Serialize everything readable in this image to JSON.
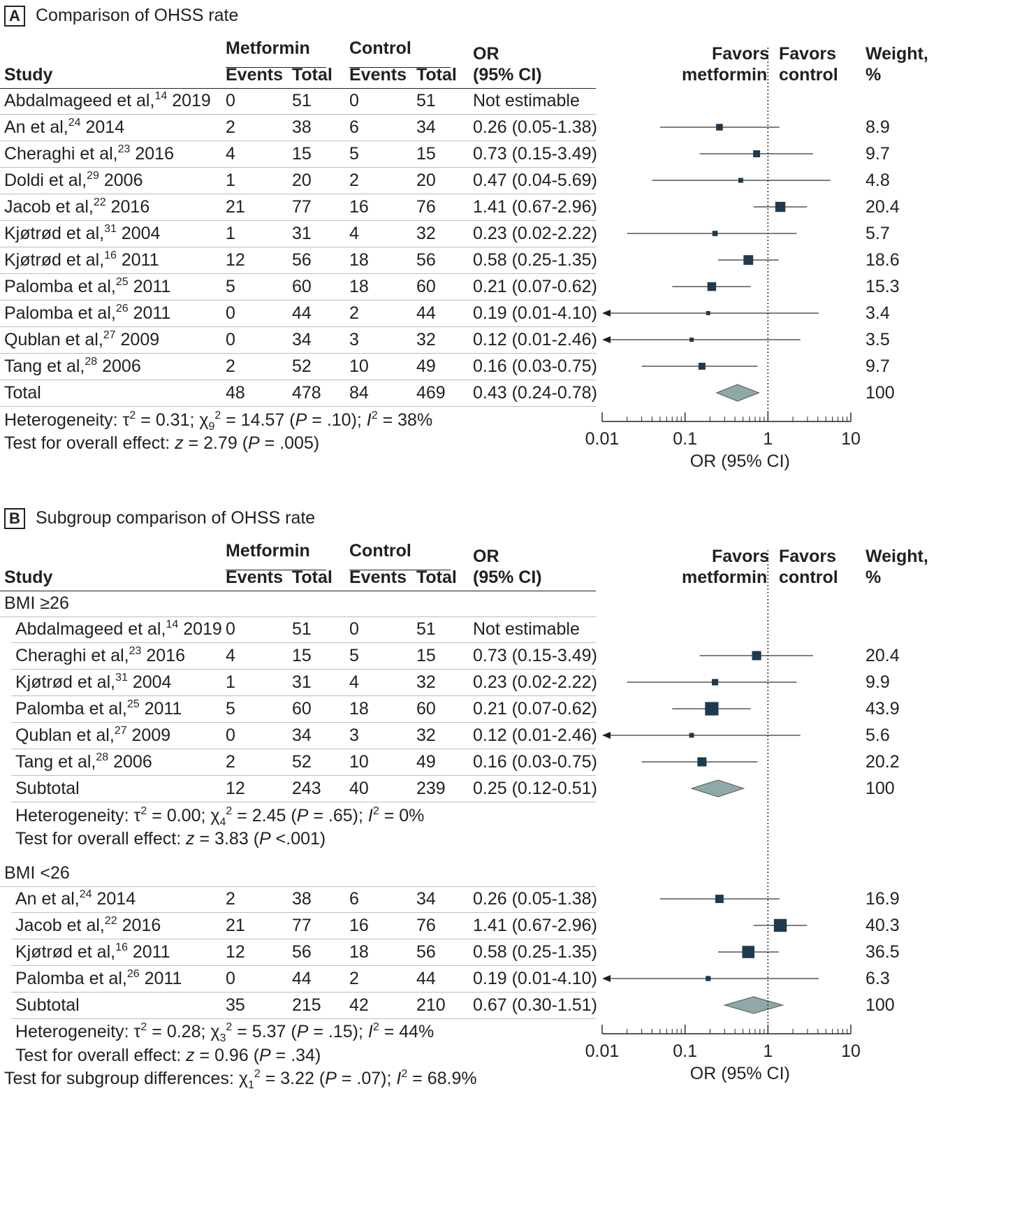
{
  "colors": {
    "marker": "#1f3a4d",
    "diamond": "#8fa9a9",
    "text": "#231f20",
    "rule": "#bdbdbd"
  },
  "panelA": {
    "letter": "A",
    "title": "Comparison of OHSS rate",
    "heterogeneity": "Heterogeneity: τ<sup>2</sup> = 0.31; χ<sub>9</sub><sup>2</sup> = 14.57 (<i>P</i> = .10); <i>I</i><sup>2</sup> = 38%",
    "overall": "Test for overall effect: <i>z</i> = 2.79 (<i>P</i> = .005)"
  },
  "panelB": {
    "letter": "B",
    "title": "Subgroup comparison of OHSS rate",
    "group1_label": "BMI ≥26",
    "group1_heterogeneity": "Heterogeneity: τ<sup>2</sup> = 0.00; χ<sub>4</sub><sup>2</sup> = 2.45 (<i>P</i> = .65); <i>I</i><sup>2</sup> = 0%",
    "group1_overall": "Test for overall effect: <i>z</i> = 3.83 (<i>P</i> &lt;.001)",
    "group2_label": "BMI <26",
    "group2_heterogeneity": "Heterogeneity: τ<sup>2</sup> = 0.28; χ<sub>3</sub><sup>2</sup> = 5.37 (<i>P</i> = .15); <i>I</i><sup>2</sup> = 44%",
    "group2_overall": "Test for overall effect: <i>z</i> = 0.96 (<i>P</i> = .34)",
    "subgroup_diff": "Test for subgroup differences: χ<sub>1</sub><sup>2</sup> = 3.22 (<i>P</i> = .07); <i>I</i><sup>2</sup> = 68.9%"
  },
  "headers": {
    "metformin": "Metformin",
    "control": "Control",
    "study": "Study",
    "events": "Events",
    "total": "Total",
    "or_line1": "OR",
    "or_line2": "(95% CI)",
    "favors1_line1": "Favors",
    "favors1_line2": "metformin",
    "favors2_line1": "Favors",
    "favors2_line2": "control",
    "weight_line1": "Weight,",
    "weight_line2": "%"
  },
  "axis": {
    "ticks": [
      0.01,
      0.1,
      1,
      10
    ],
    "tick_labels": [
      "0.01",
      "0.1",
      "1",
      "10"
    ],
    "label": "OR (95% CI)",
    "scale": "log",
    "range": [
      0.01,
      10
    ],
    "reference": 1
  },
  "chart_data": [
    {
      "type": "forest",
      "title": "Comparison of OHSS rate",
      "xlabel": "OR (95% CI)",
      "xscale": "log",
      "xlim": [
        0.01,
        10
      ],
      "studies": [
        {
          "study": "Abdalmageed et al,",
          "ref": "14",
          "year": "2019",
          "met_events": "0",
          "met_total": "51",
          "ctl_events": "0",
          "ctl_total": "51",
          "or_text": "Not estimable",
          "or": null,
          "lo": null,
          "hi": null,
          "weight": ""
        },
        {
          "study": "An et al,",
          "ref": "24",
          "year": "2014",
          "met_events": "2",
          "met_total": "38",
          "ctl_events": "6",
          "ctl_total": "34",
          "or_text": "0.26 (0.05-1.38)",
          "or": 0.26,
          "lo": 0.05,
          "hi": 1.38,
          "weight": "8.9"
        },
        {
          "study": "Cheraghi et al,",
          "ref": "23",
          "year": "2016",
          "met_events": "4",
          "met_total": "15",
          "ctl_events": "5",
          "ctl_total": "15",
          "or_text": "0.73 (0.15-3.49)",
          "or": 0.73,
          "lo": 0.15,
          "hi": 3.49,
          "weight": "9.7"
        },
        {
          "study": "Doldi et al,",
          "ref": "29",
          "year": "2006",
          "met_events": "1",
          "met_total": "20",
          "ctl_events": "2",
          "ctl_total": "20",
          "or_text": "0.47 (0.04-5.69)",
          "or": 0.47,
          "lo": 0.04,
          "hi": 5.69,
          "weight": "4.8"
        },
        {
          "study": "Jacob et al,",
          "ref": "22",
          "year": "2016",
          "met_events": "21",
          "met_total": "77",
          "ctl_events": "16",
          "ctl_total": "76",
          "or_text": "1.41 (0.67-2.96)",
          "or": 1.41,
          "lo": 0.67,
          "hi": 2.96,
          "weight": "20.4"
        },
        {
          "study": "Kjøtrød et al,",
          "ref": "31",
          "year": "2004",
          "met_events": "1",
          "met_total": "31",
          "ctl_events": "4",
          "ctl_total": "32",
          "or_text": "0.23 (0.02-2.22)",
          "or": 0.23,
          "lo": 0.02,
          "hi": 2.22,
          "weight": "5.7"
        },
        {
          "study": "Kjøtrød et al,",
          "ref": "16",
          "year": "2011",
          "met_events": "12",
          "met_total": "56",
          "ctl_events": "18",
          "ctl_total": "56",
          "or_text": "0.58 (0.25-1.35)",
          "or": 0.58,
          "lo": 0.25,
          "hi": 1.35,
          "weight": "18.6"
        },
        {
          "study": "Palomba et al,",
          "ref": "25",
          "year": "2011",
          "met_events": "5",
          "met_total": "60",
          "ctl_events": "18",
          "ctl_total": "60",
          "or_text": "0.21 (0.07-0.62)",
          "or": 0.21,
          "lo": 0.07,
          "hi": 0.62,
          "weight": "15.3"
        },
        {
          "study": "Palomba et al,",
          "ref": "26",
          "year": "2011",
          "met_events": "0",
          "met_total": "44",
          "ctl_events": "2",
          "ctl_total": "44",
          "or_text": "0.19 (0.01-4.10)",
          "or": 0.19,
          "lo": 0.01,
          "hi": 4.1,
          "weight": "3.4"
        },
        {
          "study": "Qublan et al,",
          "ref": "27",
          "year": "2009",
          "met_events": "0",
          "met_total": "34",
          "ctl_events": "3",
          "ctl_total": "32",
          "or_text": "0.12 (0.01-2.46)",
          "or": 0.12,
          "lo": 0.01,
          "hi": 2.46,
          "weight": "3.5"
        },
        {
          "study": "Tang et al,",
          "ref": "28",
          "year": "2006",
          "met_events": "2",
          "met_total": "52",
          "ctl_events": "10",
          "ctl_total": "49",
          "or_text": "0.16 (0.03-0.75)",
          "or": 0.16,
          "lo": 0.03,
          "hi": 0.75,
          "weight": "9.7"
        }
      ],
      "total": {
        "label": "Total",
        "met_events": "48",
        "met_total": "478",
        "ctl_events": "84",
        "ctl_total": "469",
        "or_text": "0.43 (0.24-0.78)",
        "or": 0.43,
        "lo": 0.24,
        "hi": 0.78,
        "weight": "100"
      }
    },
    {
      "type": "forest",
      "title": "Subgroup comparison of OHSS rate",
      "xlabel": "OR (95% CI)",
      "xscale": "log",
      "xlim": [
        0.01,
        10
      ],
      "groups": [
        {
          "label": "BMI ≥26",
          "studies": [
            {
              "study": "Abdalmageed et al,",
              "ref": "14",
              "year": "2019",
              "met_events": "0",
              "met_total": "51",
              "ctl_events": "0",
              "ctl_total": "51",
              "or_text": "Not estimable",
              "or": null,
              "lo": null,
              "hi": null,
              "weight": ""
            },
            {
              "study": "Cheraghi et al,",
              "ref": "23",
              "year": "2016",
              "met_events": "4",
              "met_total": "15",
              "ctl_events": "5",
              "ctl_total": "15",
              "or_text": "0.73 (0.15-3.49)",
              "or": 0.73,
              "lo": 0.15,
              "hi": 3.49,
              "weight": "20.4"
            },
            {
              "study": "Kjøtrød et al,",
              "ref": "31",
              "year": "2004",
              "met_events": "1",
              "met_total": "31",
              "ctl_events": "4",
              "ctl_total": "32",
              "or_text": "0.23 (0.02-2.22)",
              "or": 0.23,
              "lo": 0.02,
              "hi": 2.22,
              "weight": "9.9"
            },
            {
              "study": "Palomba et al,",
              "ref": "25",
              "year": "2011",
              "met_events": "5",
              "met_total": "60",
              "ctl_events": "18",
              "ctl_total": "60",
              "or_text": "0.21 (0.07-0.62)",
              "or": 0.21,
              "lo": 0.07,
              "hi": 0.62,
              "weight": "43.9"
            },
            {
              "study": "Qublan et al,",
              "ref": "27",
              "year": "2009",
              "met_events": "0",
              "met_total": "34",
              "ctl_events": "3",
              "ctl_total": "32",
              "or_text": "0.12 (0.01-2.46)",
              "or": 0.12,
              "lo": 0.01,
              "hi": 2.46,
              "weight": "5.6"
            },
            {
              "study": "Tang et al,",
              "ref": "28",
              "year": "2006",
              "met_events": "2",
              "met_total": "52",
              "ctl_events": "10",
              "ctl_total": "49",
              "or_text": "0.16 (0.03-0.75)",
              "or": 0.16,
              "lo": 0.03,
              "hi": 0.75,
              "weight": "20.2"
            }
          ],
          "subtotal": {
            "label": "Subtotal",
            "met_events": "12",
            "met_total": "243",
            "ctl_events": "40",
            "ctl_total": "239",
            "or_text": "0.25 (0.12-0.51)",
            "or": 0.25,
            "lo": 0.12,
            "hi": 0.51,
            "weight": "100"
          }
        },
        {
          "label": "BMI <26",
          "studies": [
            {
              "study": "An et al,",
              "ref": "24",
              "year": "2014",
              "met_events": "2",
              "met_total": "38",
              "ctl_events": "6",
              "ctl_total": "34",
              "or_text": "0.26 (0.05-1.38)",
              "or": 0.26,
              "lo": 0.05,
              "hi": 1.38,
              "weight": "16.9"
            },
            {
              "study": "Jacob et al,",
              "ref": "22",
              "year": "2016",
              "met_events": "21",
              "met_total": "77",
              "ctl_events": "16",
              "ctl_total": "76",
              "or_text": "1.41 (0.67-2.96)",
              "or": 1.41,
              "lo": 0.67,
              "hi": 2.96,
              "weight": "40.3"
            },
            {
              "study": "Kjøtrød et al,",
              "ref": "16",
              "year": "2011",
              "met_events": "12",
              "met_total": "56",
              "ctl_events": "18",
              "ctl_total": "56",
              "or_text": "0.58 (0.25-1.35)",
              "or": 0.58,
              "lo": 0.25,
              "hi": 1.35,
              "weight": "36.5"
            },
            {
              "study": "Palomba et al,",
              "ref": "26",
              "year": "2011",
              "met_events": "0",
              "met_total": "44",
              "ctl_events": "2",
              "ctl_total": "44",
              "or_text": "0.19 (0.01-4.10)",
              "or": 0.19,
              "lo": 0.01,
              "hi": 4.1,
              "weight": "6.3"
            }
          ],
          "subtotal": {
            "label": "Subtotal",
            "met_events": "35",
            "met_total": "215",
            "ctl_events": "42",
            "ctl_total": "210",
            "or_text": "0.67 (0.30-1.51)",
            "or": 0.67,
            "lo": 0.3,
            "hi": 1.51,
            "weight": "100"
          }
        }
      ]
    }
  ]
}
